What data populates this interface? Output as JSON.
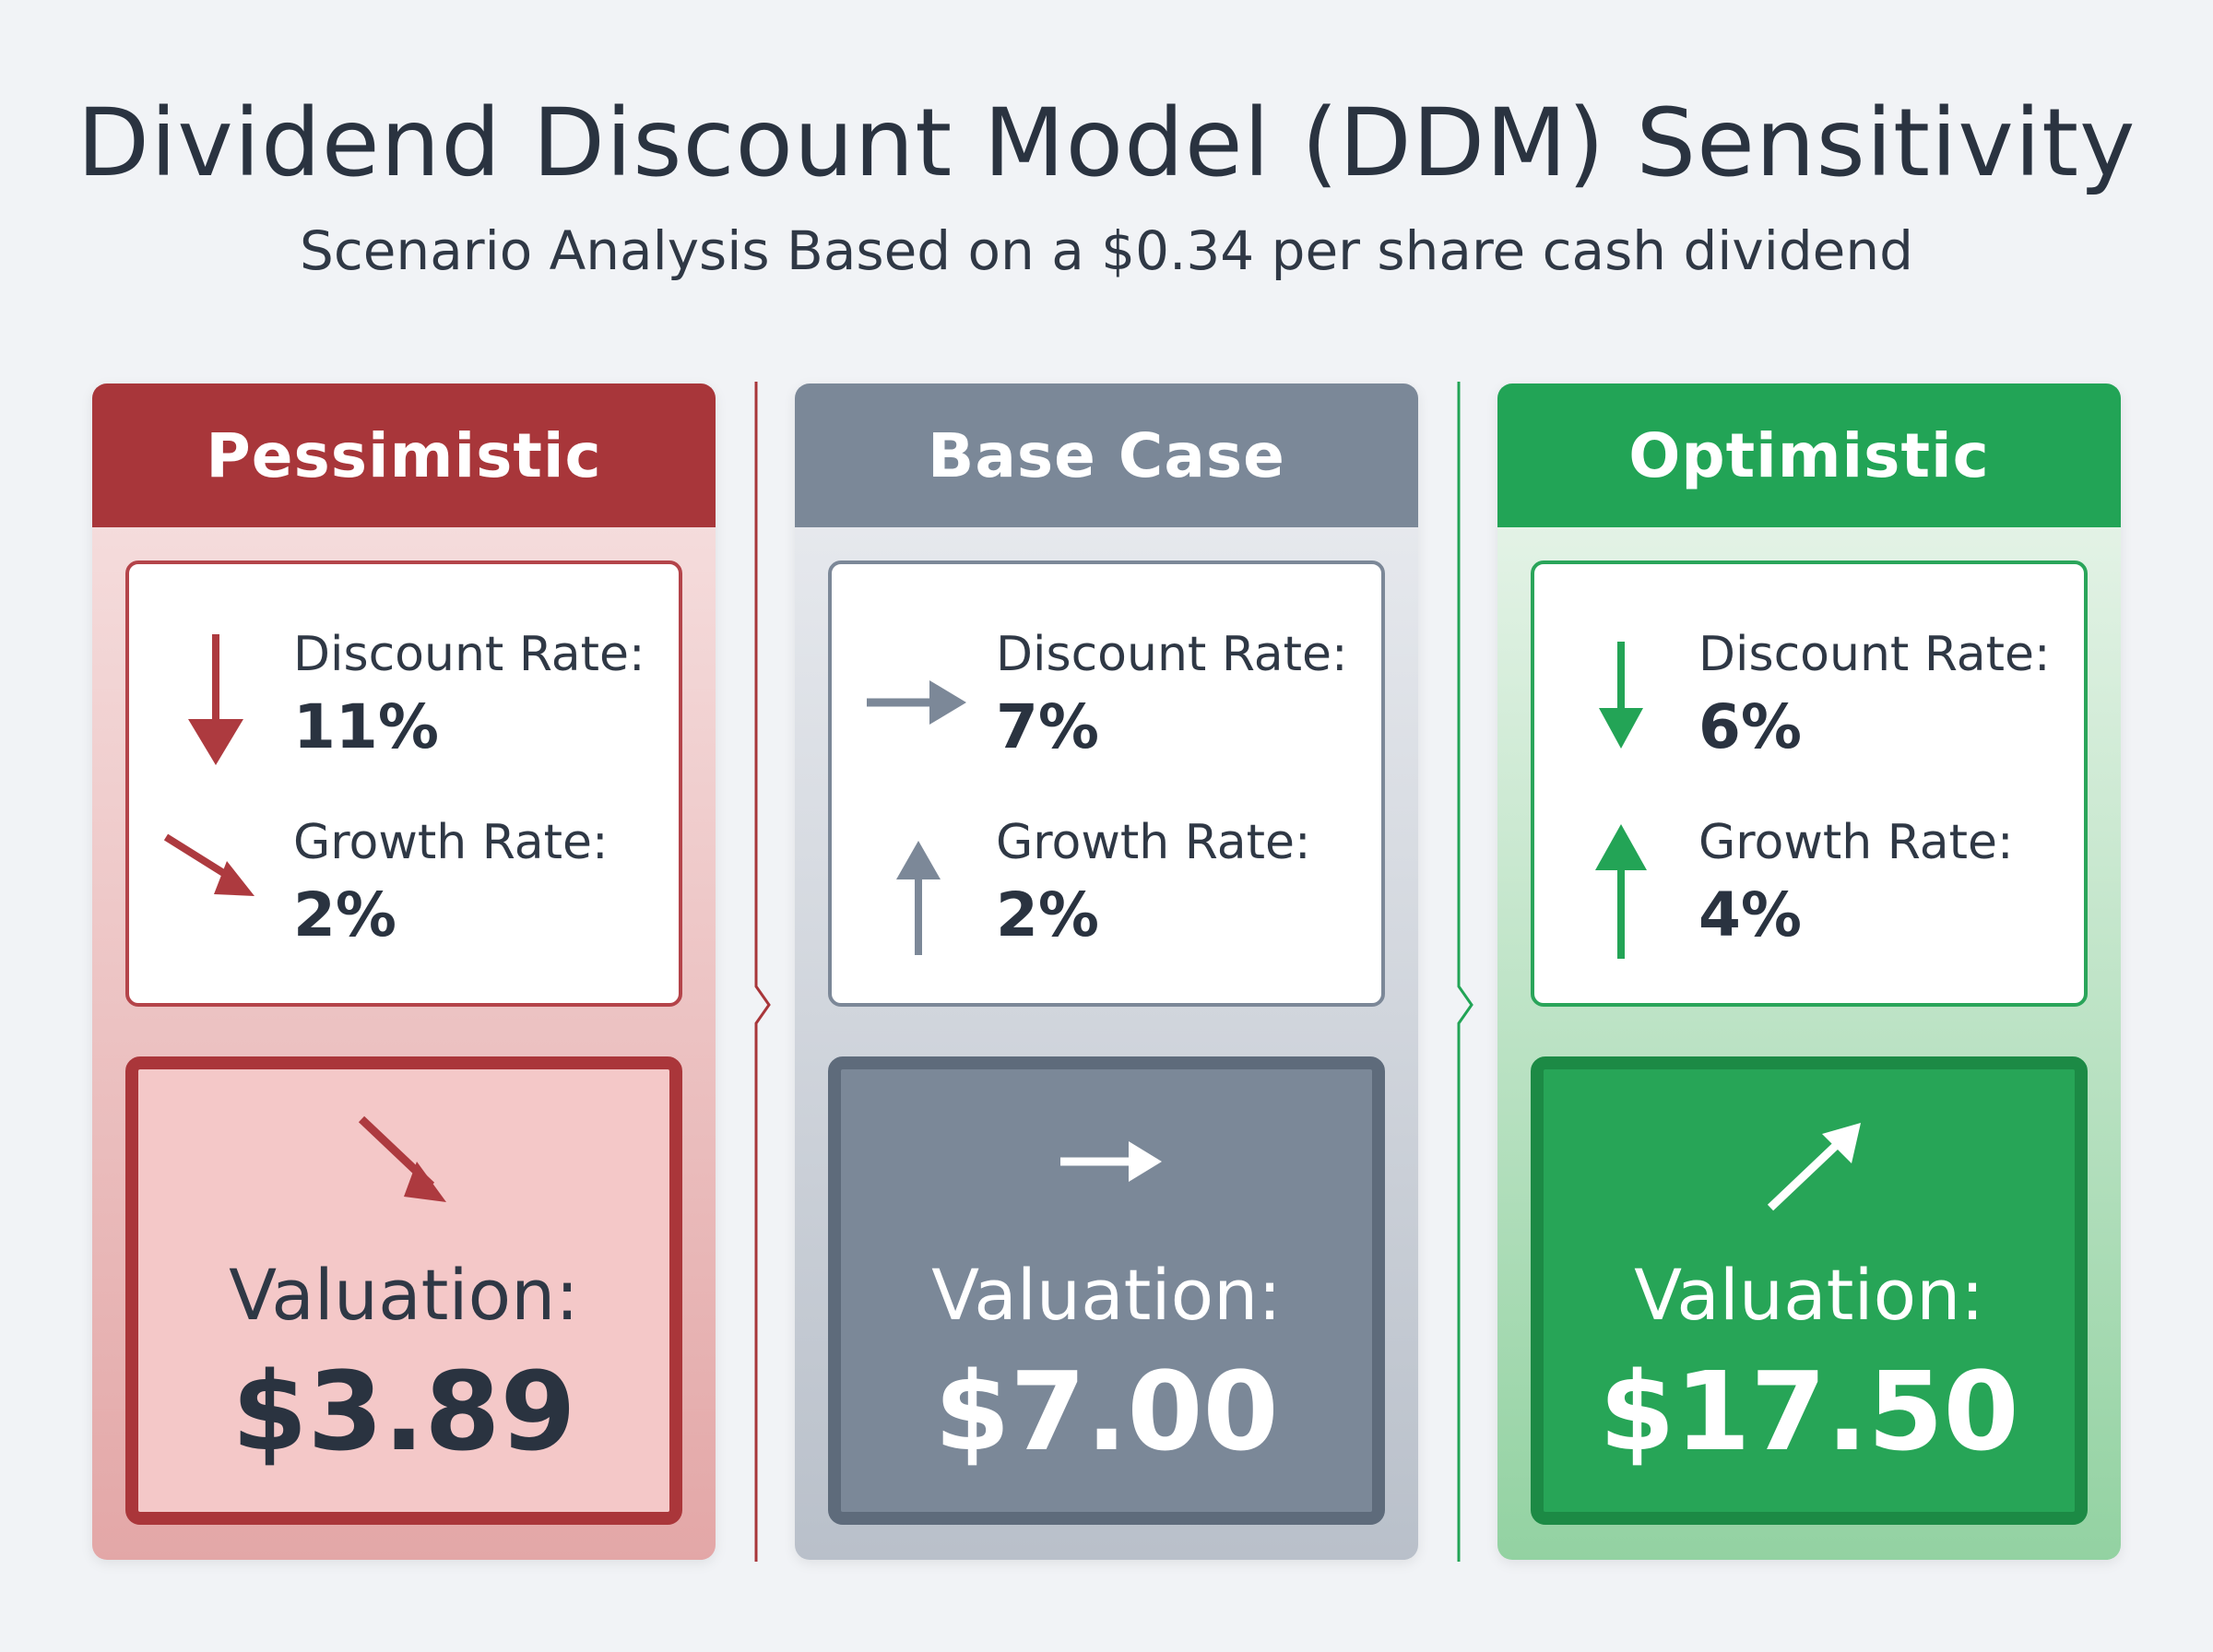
{
  "title": "Dividend Discount Model (DDM) Sensitivity",
  "subtitle": "Scenario Analysis Based on a $0.34 per share cash dividend",
  "scenarios": [
    {
      "name": "Pessimistic",
      "discount_label": "Discount Rate:",
      "discount_value": "11%",
      "growth_label": "Growth Rate:",
      "growth_value": "2%",
      "valuation_label": "Valuation:",
      "valuation_value": "$3.89",
      "discount_icon": "arrow-down-icon",
      "growth_icon": "arrow-down-right-icon",
      "valuation_icon": "arrow-down-right-icon"
    },
    {
      "name": "Base Case",
      "discount_label": "Discount Rate:",
      "discount_value": "7%",
      "growth_label": "Growth Rate:",
      "growth_value": "2%",
      "valuation_label": "Valuation:",
      "valuation_value": "$7.00",
      "discount_icon": "arrow-right-icon",
      "growth_icon": "arrow-up-icon",
      "valuation_icon": "arrow-right-icon"
    },
    {
      "name": "Optimistic",
      "discount_label": "Discount Rate:",
      "discount_value": "6%",
      "growth_label": "Growth Rate:",
      "growth_value": "4%",
      "valuation_label": "Valuation:",
      "valuation_value": "$17.50",
      "discount_icon": "arrow-down-icon",
      "growth_icon": "arrow-up-icon",
      "valuation_icon": "arrow-up-right-icon"
    }
  ],
  "colors": {
    "pessimistic": "#a8363a",
    "base": "#7b8898",
    "optimistic": "#22a456",
    "text": "#2a3340"
  }
}
